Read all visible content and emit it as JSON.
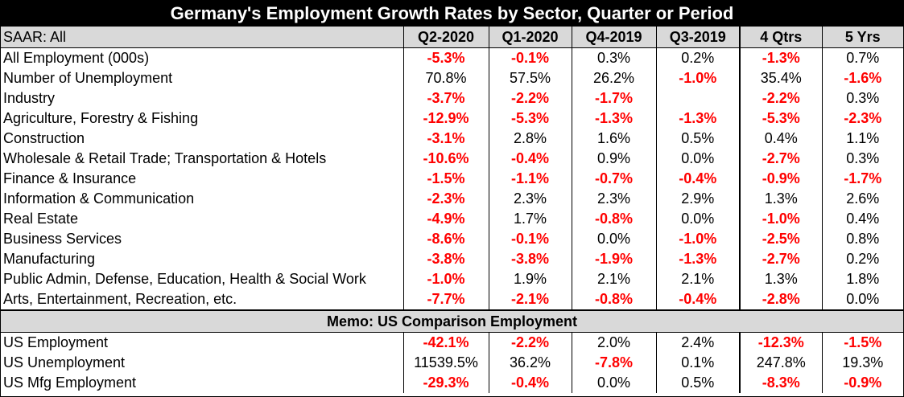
{
  "title": "Germany's Employment Growth Rates by Sector, Quarter or Period",
  "header": {
    "label": "SAAR: All",
    "columns": [
      "Q2-2020",
      "Q1-2020",
      "Q4-2019",
      "Q3-2019",
      "4 Qtrs",
      "5 Yrs"
    ]
  },
  "rows": [
    {
      "label": "All Employment (000s)",
      "values": [
        "-5.3%",
        "-0.1%",
        "0.3%",
        "0.2%",
        "-1.3%",
        "0.7%"
      ]
    },
    {
      "label": "Number of Unemployment",
      "values": [
        "70.8%",
        "57.5%",
        "26.2%",
        "-1.0%",
        "35.4%",
        "-1.6%"
      ]
    },
    {
      "label": "Industry",
      "values": [
        "-3.7%",
        "-2.2%",
        "-1.7%",
        "",
        "-2.2%",
        "0.3%"
      ]
    },
    {
      "label": "Agriculture, Forestry & Fishing",
      "values": [
        "-12.9%",
        "-5.3%",
        "-1.3%",
        "-1.3%",
        "-5.3%",
        "-2.3%"
      ]
    },
    {
      "label": "Construction",
      "values": [
        "-3.1%",
        "2.8%",
        "1.6%",
        "0.5%",
        "0.4%",
        "1.1%"
      ]
    },
    {
      "label": "Wholesale & Retail Trade; Transportation & Hotels",
      "values": [
        "-10.6%",
        "-0.4%",
        "0.9%",
        "0.0%",
        "-2.7%",
        "0.3%"
      ]
    },
    {
      "label": "Finance & Insurance",
      "values": [
        "-1.5%",
        "-1.1%",
        "-0.7%",
        "-0.4%",
        "-0.9%",
        "-1.7%"
      ]
    },
    {
      "label": "Information & Communication",
      "values": [
        "-2.3%",
        "2.3%",
        "2.3%",
        "2.9%",
        "1.3%",
        "2.6%"
      ]
    },
    {
      "label": "Real Estate",
      "values": [
        "-4.9%",
        "1.7%",
        "-0.8%",
        "0.0%",
        "-1.0%",
        "0.4%"
      ]
    },
    {
      "label": "Business Services",
      "values": [
        "-8.6%",
        "-0.1%",
        "0.0%",
        "-1.0%",
        "-2.5%",
        "0.8%"
      ]
    },
    {
      "label": "Manufacturing",
      "values": [
        "-3.8%",
        "-3.8%",
        "-1.9%",
        "-1.3%",
        "-2.7%",
        "0.2%"
      ]
    },
    {
      "label": "Public Admin, Defense, Education, Health & Social Work",
      "values": [
        "-1.0%",
        "1.9%",
        "2.1%",
        "2.1%",
        "1.3%",
        "1.8%"
      ]
    },
    {
      "label": "Arts, Entertainment, Recreation, etc.",
      "values": [
        "-7.7%",
        "-2.1%",
        "-0.8%",
        "-0.4%",
        "-2.8%",
        "0.0%"
      ]
    }
  ],
  "memo": {
    "label": "Memo: US Comparison Employment",
    "rows": [
      {
        "label": "US Employment",
        "values": [
          "-42.1%",
          "-2.2%",
          "2.0%",
          "2.4%",
          "-12.3%",
          "-1.5%"
        ]
      },
      {
        "label": "US Unemployment",
        "values": [
          "11539.5%",
          "36.2%",
          "-7.8%",
          "0.1%",
          "247.8%",
          "19.3%"
        ]
      },
      {
        "label": "US Mfg Employment",
        "values": [
          "-29.3%",
          "-0.4%",
          "0.0%",
          "0.5%",
          "-8.3%",
          "-0.9%"
        ]
      }
    ]
  },
  "colors": {
    "negative": "#ff0000",
    "positive": "#000000",
    "title_bg": "#000000",
    "header_bg": "#d9d9d9"
  }
}
